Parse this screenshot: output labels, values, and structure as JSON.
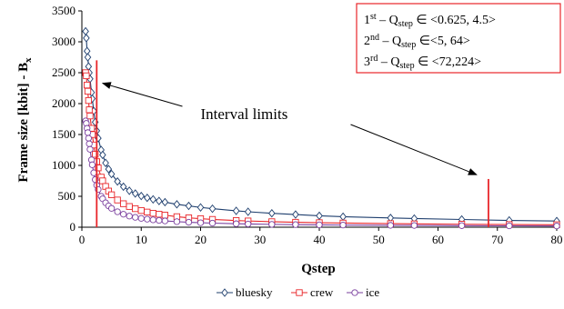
{
  "chart_data": {
    "type": "line",
    "xlabel": "Qstep",
    "ylabel": "Frame size [kbit] - B",
    "ylabel_sub": "x",
    "xlim": [
      0,
      80
    ],
    "ylim": [
      0,
      3500
    ],
    "xticks": [
      0,
      10,
      20,
      30,
      40,
      50,
      60,
      70,
      80
    ],
    "yticks": [
      0,
      500,
      1000,
      1500,
      2000,
      2500,
      3000,
      3500
    ],
    "grid": false,
    "legend_position": "bottom",
    "colors": {
      "bluesky": "#1f3f6e",
      "crew": "#e8262a",
      "ice": "#7a3f9e",
      "limits": "#e8262a"
    },
    "series": [
      {
        "name": "bluesky",
        "marker": "diamond",
        "x": [
          0.625,
          0.75,
          0.875,
          1,
          1.125,
          1.25,
          1.375,
          1.625,
          1.75,
          2,
          2.25,
          2.5,
          2.75,
          3.25,
          3.5,
          4,
          4.5,
          5,
          6,
          7,
          8,
          9,
          10,
          11,
          12,
          13,
          14,
          16,
          18,
          20,
          22,
          26,
          28,
          32,
          36,
          40,
          44,
          52,
          56,
          64,
          72,
          80
        ],
        "y": [
          3170,
          3060,
          2850,
          2750,
          2600,
          2500,
          2400,
          2180,
          2080,
          1880,
          1700,
          1560,
          1440,
          1250,
          1170,
          1040,
          940,
          860,
          740,
          655,
          590,
          545,
          505,
          475,
          450,
          425,
          405,
          370,
          345,
          320,
          300,
          265,
          250,
          225,
          205,
          185,
          170,
          150,
          140,
          125,
          110,
          100
        ]
      },
      {
        "name": "crew",
        "marker": "square",
        "x": [
          0.625,
          0.75,
          0.875,
          1,
          1.125,
          1.25,
          1.375,
          1.625,
          1.75,
          2,
          2.25,
          2.5,
          2.75,
          3.25,
          3.5,
          4,
          4.5,
          5,
          6,
          7,
          8,
          9,
          10,
          11,
          12,
          13,
          14,
          16,
          18,
          20,
          22,
          26,
          28,
          32,
          36,
          40,
          44,
          52,
          56,
          64,
          72,
          80
        ],
        "y": [
          2500,
          2450,
          2300,
          2200,
          2050,
          1900,
          1800,
          1600,
          1500,
          1330,
          1180,
          1060,
          960,
          810,
          750,
          660,
          585,
          525,
          440,
          380,
          335,
          300,
          270,
          245,
          225,
          210,
          195,
          170,
          152,
          138,
          126,
          108,
          101,
          89,
          80,
          73,
          67,
          58,
          54,
          48,
          43,
          40
        ]
      },
      {
        "name": "ice",
        "marker": "circle",
        "x": [
          0.625,
          0.75,
          0.875,
          1,
          1.125,
          1.25,
          1.375,
          1.625,
          1.75,
          2,
          2.25,
          2.5,
          2.75,
          3.25,
          3.5,
          4,
          4.5,
          5,
          6,
          7,
          8,
          9,
          10,
          11,
          12,
          13,
          14,
          16,
          18,
          20,
          22,
          26,
          28,
          32,
          36,
          40,
          44,
          52,
          56,
          64,
          72,
          80
        ],
        "y": [
          1720,
          1680,
          1600,
          1530,
          1440,
          1350,
          1260,
          1090,
          1010,
          880,
          770,
          680,
          610,
          500,
          460,
          395,
          345,
          305,
          250,
          210,
          180,
          160,
          143,
          130,
          119,
          110,
          102,
          90,
          80,
          72,
          66,
          56,
          52,
          46,
          42,
          38,
          35,
          30,
          28,
          25,
          22,
          20
        ]
      }
    ],
    "interval_limits": [
      {
        "x": 2.5,
        "y_from": 0,
        "y_to": 2700
      },
      {
        "x": 68.5,
        "y_from": 0,
        "y_to": 780
      }
    ],
    "annotation": {
      "text": "Interval limits",
      "x": 20,
      "y": 1750
    }
  },
  "info_box": {
    "lines": [
      {
        "ord": "1",
        "sup": "st",
        "mid": " – Q",
        "sub": "step",
        "range": " ∈ <0.625, 4.5>"
      },
      {
        "ord": "2",
        "sup": "nd",
        "mid": " – Q",
        "sub": "step",
        "range": " ∈<5, 64>"
      },
      {
        "ord": "3",
        "sup": "rd",
        "mid": " – Q",
        "sub": "step",
        "range": " ∈ <72,224>"
      }
    ]
  }
}
